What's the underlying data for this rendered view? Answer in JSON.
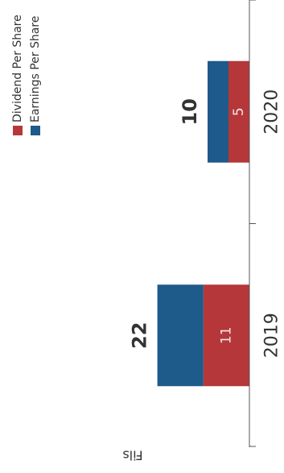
{
  "chart_data": {
    "type": "bar",
    "orientation": "rotated-90",
    "stacked": true,
    "categories": [
      "2019",
      "2020"
    ],
    "ylabel": "Fils",
    "ylim": [
      0,
      24
    ],
    "series": [
      {
        "name": "Dividend Per Share",
        "values": [
          11,
          5
        ],
        "color": "#b5373a",
        "labels": [
          "11",
          "5"
        ]
      },
      {
        "name": "Earnings Per Share",
        "values": [
          11,
          5
        ],
        "color": "#1e5a8a"
      }
    ],
    "totals": [
      "22",
      "10"
    ],
    "legend": "top",
    "grid": false
  }
}
